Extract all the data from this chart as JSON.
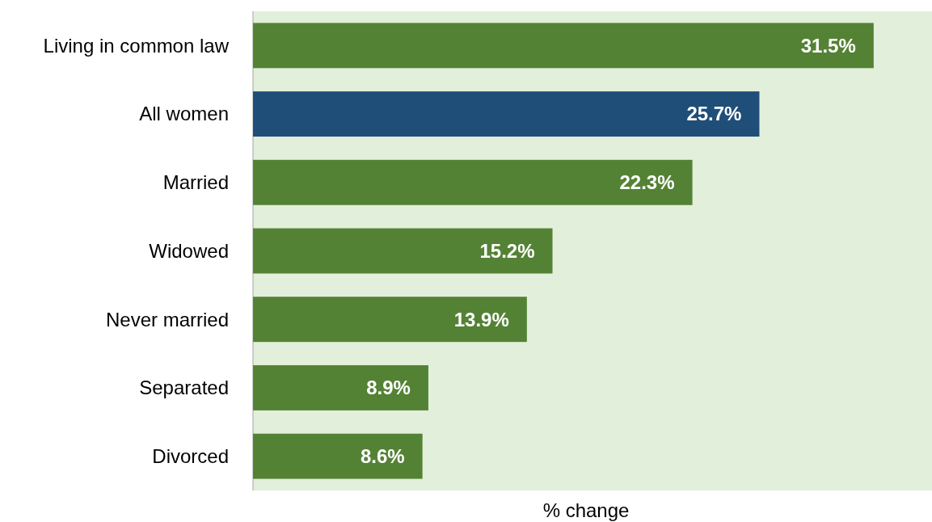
{
  "chart_data": {
    "type": "bar",
    "orientation": "horizontal",
    "xlabel": "% change",
    "categories": [
      "Living in common law",
      "All women",
      "Married",
      "Widowed",
      "Never married",
      "Separated",
      "Divorced"
    ],
    "values": [
      31.5,
      25.7,
      22.3,
      15.2,
      13.9,
      8.9,
      8.6
    ],
    "colors": [
      "#548235",
      "#1f4e79",
      "#548235",
      "#548235",
      "#548235",
      "#548235",
      "#548235"
    ],
    "value_labels": [
      "31.5%",
      "25.7%",
      "22.3%",
      "15.2%",
      "13.9%",
      "8.9%",
      "8.6%"
    ]
  }
}
